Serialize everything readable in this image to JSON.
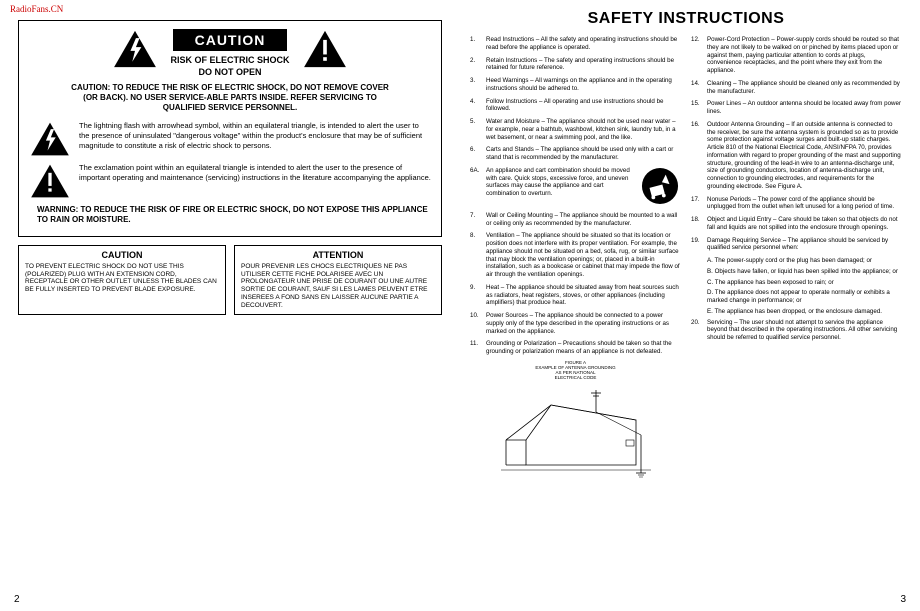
{
  "watermark": "RadioFans.CN",
  "left": {
    "caution_label": "CAUTION",
    "risk_line1": "RISK OF ELECTRIC SHOCK",
    "risk_line2": "DO NOT OPEN",
    "main_caution": "CAUTION: TO REDUCE THE RISK OF ELECTRIC SHOCK, DO NOT REMOVE COVER (OR BACK). NO USER SERVICE-ABLE PARTS INSIDE. REFER SERVICING TO QUALIFIED SERVICE PERSONNEL.",
    "lightning_text": "The lightning flash with arrowhead symbol, within an equilateral triangle, is intended to alert the user to the presence of uninsulated \"dangerous voltage\" within the product's enclosure that may be of sufficient magnitude to constitute a risk of electric shock to persons.",
    "exclaim_text": "The exclamation point within an equilateral triangle is intended to alert the user to the presence of important operating and maintenance (servicing) instructions in the literature accompanying the appliance.",
    "warning": "WARNING: TO REDUCE THE RISK OF FIRE OR ELECTRIC SHOCK, DO NOT EXPOSE THIS APPLIANCE TO RAIN OR MOISTURE.",
    "box1_title": "CAUTION",
    "box1_text": "TO PREVENT ELECTRIC SHOCK DO NOT USE THIS (POLARIZED) PLUG WITH AN EXTENSION CORD, RECEPTACLE OR OTHER OUTLET UNLESS THE BLADES CAN BE FULLY INSERTED TO PREVENT BLADE EXPOSURE.",
    "box2_title": "ATTENTION",
    "box2_text": "POUR PREVENIR LES CHOCS ELECTRIQUES NE PAS UTILISER CETTE FICHE POLARISEE AVEC UN PROLONGATEUR UNE PRISE DE COURANT OU UNE AUTRE SORTIE DE COURANT, SAUF SI LES LAMES PEUVENT ETRE INSEREES A FOND SANS EN LAISSER AUCUNE PARTIE A DECOUVERT.",
    "page_num": "2"
  },
  "right": {
    "title": "SAFETY INSTRUCTIONS",
    "col1": [
      {
        "n": "1.",
        "t": "Read Instructions – All the safety and operating instructions should be read before the appliance is operated."
      },
      {
        "n": "2.",
        "t": "Retain Instructions – The safety and operating instructions should be retained for future reference."
      },
      {
        "n": "3.",
        "t": "Heed Warnings – All warnings on the appliance and in the operating instructions should be adhered to."
      },
      {
        "n": "4.",
        "t": "Follow Instructions – All operating and use instructions should be followed."
      },
      {
        "n": "5.",
        "t": "Water and Moisture – The appliance should not be used near water – for example, near a bathtub, washbowl, kitchen sink, laundry tub, in a wet basement, or near a swimming pool, and the like."
      },
      {
        "n": "6.",
        "t": "Carts and Stands – The appliance should be used only with a cart or stand that is recommended by the manufacturer."
      },
      {
        "n": "6A.",
        "t": "An appliance and cart combination should be moved with care. Quick stops, excessive force, and uneven surfaces may cause the appliance and cart combination to overturn."
      },
      {
        "n": "7.",
        "t": "Wall or Ceiling Mounting – The appliance should be mounted to a wall or ceiling only as recommended by the manufacturer."
      },
      {
        "n": "8.",
        "t": "Ventilation – The appliance should be situated so that its location or position does not interfere with its proper ventilation. For example, the appliance should not be situated on a bed, sofa, rug, or similar surface that may block the ventilation openings; or, placed in a built-in installation, such as a bookcase or cabinet that may impede the flow of air through the ventilation openings."
      },
      {
        "n": "9.",
        "t": "Heat – The appliance should be situated away from heat sources such as radiators, heat registers, stoves, or other appliances (including amplifiers) that produce heat."
      },
      {
        "n": "10.",
        "t": "Power Sources – The appliance should be connected to a power supply only of the type described in the operating instructions or as marked on the appliance."
      },
      {
        "n": "11.",
        "t": "Grounding or Polarization – Precautions should be taken so that the grounding or polarization means of an appliance is not defeated."
      }
    ],
    "col2": [
      {
        "n": "12.",
        "t": "Power-Cord Protection – Power-supply cords should be routed so that they are not likely to be walked on or pinched by items placed upon or against them, paying particular attention to cords at plugs, convenience receptacles, and the point where they exit from the appliance."
      },
      {
        "n": "14.",
        "t": "Cleaning – The appliance should be cleaned only as recommended by the manufacturer."
      },
      {
        "n": "15.",
        "t": "Power Lines – An outdoor antenna should be located away from power lines."
      },
      {
        "n": "16.",
        "t": "Outdoor Antenna Grounding – If an outside antenna is connected to the receiver, be sure the antenna system is grounded so as to provide some protection against voltage surges and built-up static charges. Article 810 of the National Electrical Code, ANSI/NFPA 70, provides information with regard to proper grounding of the mast and supporting structure, grounding of the lead-in wire to an antenna-discharge unit, size of grounding conductors, location of antenna-discharge unit, connection to grounding electrodes, and requirements for the grounding electrode. See Figure A."
      },
      {
        "n": "17.",
        "t": "Nonuse Periods – The power cord of the appliance should be unplugged from the outlet when left unused for a long period of time."
      },
      {
        "n": "18.",
        "t": "Object and Liquid Entry – Care should be taken so that objects do not fall and liquids are not spilled into the enclosure through openings."
      },
      {
        "n": "19.",
        "t": "Damage Requiring Service – The appliance should be serviced by qualified service personnel when:"
      }
    ],
    "subs19": [
      "A. The power-supply cord or the plug has been damaged; or",
      "B. Objects have fallen, or liquid has been spilled into the appliance; or",
      "C. The appliance has been exposed to rain; or",
      "D. The appliance does not appear to operate normally or exhibits a marked change in performance; or",
      "E. The appliance has been dropped, or the enclosure damaged."
    ],
    "item20": {
      "n": "20.",
      "t": "Servicing – The user should not attempt to service the appliance beyond that described in the operating instructions. All other servicing should be referred to qualified service personnel."
    },
    "figure_label": "FIGURE A\nEXAMPLE OF ANTENNA GROUNDING\nAS PER NATIONAL\nELECTRICAL CODE",
    "page_num": "3"
  }
}
